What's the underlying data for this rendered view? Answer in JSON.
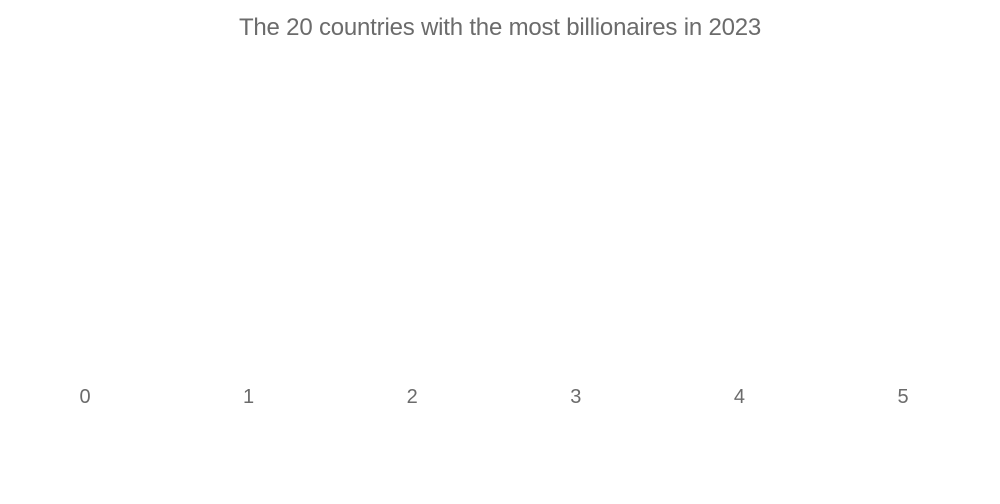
{
  "chart_data": {
    "type": "bar",
    "title": "The 20 countries with the most billionaires in 2023",
    "xlabel": "",
    "ylabel": "",
    "categories": [],
    "values": [],
    "xlim": [
      0,
      5
    ],
    "x_ticks": [
      "0",
      "1",
      "2",
      "3",
      "4",
      "5"
    ],
    "grid": false,
    "text_color": "#6b6b6b"
  }
}
